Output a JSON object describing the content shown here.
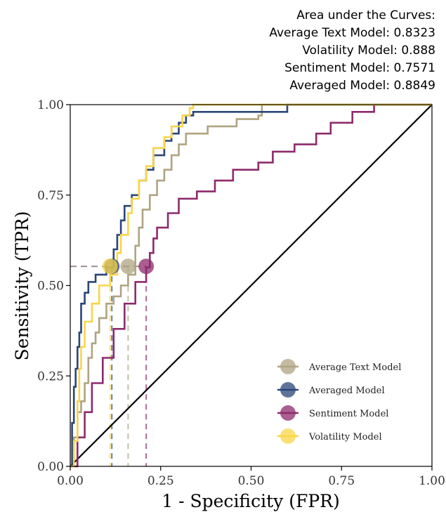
{
  "chart_data": {
    "type": "line",
    "title": "",
    "xlabel": "1 - Specificity (FPR)",
    "ylabel": "Sensitivity (TPR)",
    "xlim": [
      0,
      1
    ],
    "ylim": [
      0,
      1
    ],
    "xticks": [
      "0.00",
      "0.25",
      "0.50",
      "0.75",
      "1.00"
    ],
    "yticks": [
      "0.00",
      "0.25",
      "0.50",
      "0.75",
      "1.00"
    ],
    "grid": false,
    "legend_position": "bottom-right",
    "auc_box": {
      "lines": [
        "Area under the Curves:",
        "Average Text Model: 0.8323",
        "Volatility Model: 0.888",
        "Sentiment Model: 0.7571",
        "Averaged Model: 0.8849"
      ]
    },
    "operating_points": {
      "tpr": 0.553,
      "reference_line_color": "#9e8a90"
    },
    "diagonal": {
      "x": [
        0,
        1
      ],
      "y": [
        0,
        1
      ],
      "color": "#000000"
    },
    "series": [
      {
        "name": "Average Text Model",
        "color": "#aea481",
        "marker": {
          "x": 0.16,
          "y": 0.553
        },
        "x": [
          0,
          0.01,
          0.01,
          0.02,
          0.02,
          0.03,
          0.03,
          0.04,
          0.04,
          0.05,
          0.05,
          0.06,
          0.06,
          0.07,
          0.07,
          0.08,
          0.08,
          0.1,
          0.1,
          0.12,
          0.12,
          0.14,
          0.14,
          0.16,
          0.16,
          0.18,
          0.18,
          0.19,
          0.19,
          0.2,
          0.2,
          0.22,
          0.22,
          0.24,
          0.24,
          0.26,
          0.26,
          0.28,
          0.28,
          0.3,
          0.3,
          0.32,
          0.32,
          0.38,
          0.38,
          0.46,
          0.46,
          0.52,
          0.52,
          0.53,
          0.53,
          1.0
        ],
        "y": [
          0,
          0,
          0.08,
          0.08,
          0.15,
          0.15,
          0.18,
          0.18,
          0.23,
          0.23,
          0.3,
          0.3,
          0.34,
          0.34,
          0.37,
          0.37,
          0.41,
          0.41,
          0.45,
          0.45,
          0.47,
          0.47,
          0.5,
          0.5,
          0.53,
          0.53,
          0.61,
          0.61,
          0.66,
          0.66,
          0.71,
          0.71,
          0.75,
          0.75,
          0.79,
          0.79,
          0.82,
          0.82,
          0.86,
          0.86,
          0.89,
          0.89,
          0.92,
          0.92,
          0.94,
          0.94,
          0.96,
          0.96,
          0.97,
          0.97,
          1.0,
          1.0
        ]
      },
      {
        "name": "Averaged Model",
        "color": "#2b4677",
        "marker": {
          "x": 0.115,
          "y": 0.553
        },
        "x": [
          0,
          0.005,
          0.005,
          0.01,
          0.01,
          0.015,
          0.015,
          0.02,
          0.02,
          0.025,
          0.025,
          0.03,
          0.03,
          0.04,
          0.04,
          0.05,
          0.05,
          0.07,
          0.07,
          0.1,
          0.1,
          0.12,
          0.12,
          0.13,
          0.13,
          0.14,
          0.14,
          0.15,
          0.15,
          0.17,
          0.17,
          0.19,
          0.19,
          0.21,
          0.21,
          0.23,
          0.23,
          0.26,
          0.26,
          0.28,
          0.28,
          0.3,
          0.3,
          0.32,
          0.32,
          0.34,
          0.34,
          0.6,
          0.6,
          1.0
        ],
        "y": [
          0,
          0,
          0.12,
          0.12,
          0.22,
          0.22,
          0.27,
          0.27,
          0.33,
          0.33,
          0.37,
          0.37,
          0.45,
          0.45,
          0.48,
          0.48,
          0.51,
          0.51,
          0.53,
          0.53,
          0.55,
          0.55,
          0.6,
          0.6,
          0.64,
          0.64,
          0.68,
          0.68,
          0.72,
          0.72,
          0.75,
          0.75,
          0.79,
          0.79,
          0.82,
          0.82,
          0.86,
          0.86,
          0.9,
          0.9,
          0.92,
          0.92,
          0.95,
          0.95,
          0.97,
          0.97,
          0.98,
          0.98,
          1.0,
          1.0
        ]
      },
      {
        "name": "Sentiment Model",
        "color": "#8e2a6b",
        "marker": {
          "x": 0.21,
          "y": 0.553
        },
        "x": [
          0,
          0.02,
          0.02,
          0.04,
          0.04,
          0.06,
          0.06,
          0.09,
          0.09,
          0.12,
          0.12,
          0.15,
          0.15,
          0.18,
          0.18,
          0.21,
          0.21,
          0.22,
          0.22,
          0.23,
          0.23,
          0.24,
          0.24,
          0.27,
          0.27,
          0.3,
          0.3,
          0.35,
          0.35,
          0.4,
          0.4,
          0.45,
          0.45,
          0.52,
          0.52,
          0.56,
          0.56,
          0.62,
          0.62,
          0.68,
          0.68,
          0.72,
          0.72,
          0.78,
          0.78,
          0.84,
          0.84,
          1.0
        ],
        "y": [
          0,
          0,
          0.08,
          0.08,
          0.15,
          0.15,
          0.23,
          0.23,
          0.3,
          0.3,
          0.38,
          0.38,
          0.45,
          0.45,
          0.51,
          0.51,
          0.55,
          0.55,
          0.59,
          0.59,
          0.63,
          0.63,
          0.66,
          0.66,
          0.7,
          0.7,
          0.74,
          0.74,
          0.76,
          0.76,
          0.79,
          0.79,
          0.82,
          0.82,
          0.84,
          0.84,
          0.87,
          0.87,
          0.89,
          0.89,
          0.92,
          0.92,
          0.95,
          0.95,
          0.98,
          0.98,
          1.0,
          1.0
        ]
      },
      {
        "name": "Volatility Model",
        "color": "#f9d548",
        "marker": {
          "x": 0.11,
          "y": 0.553
        },
        "x": [
          0,
          0.01,
          0.01,
          0.02,
          0.02,
          0.025,
          0.025,
          0.03,
          0.03,
          0.04,
          0.04,
          0.06,
          0.06,
          0.08,
          0.08,
          0.11,
          0.11,
          0.13,
          0.13,
          0.14,
          0.14,
          0.16,
          0.16,
          0.17,
          0.17,
          0.19,
          0.19,
          0.21,
          0.21,
          0.23,
          0.23,
          0.26,
          0.26,
          0.28,
          0.28,
          0.31,
          0.31,
          0.33,
          0.33,
          0.34,
          0.34,
          1.0
        ],
        "y": [
          0,
          0,
          0.07,
          0.07,
          0.18,
          0.18,
          0.27,
          0.27,
          0.33,
          0.33,
          0.4,
          0.4,
          0.45,
          0.45,
          0.5,
          0.5,
          0.53,
          0.53,
          0.59,
          0.59,
          0.64,
          0.64,
          0.7,
          0.7,
          0.74,
          0.74,
          0.79,
          0.79,
          0.83,
          0.83,
          0.88,
          0.88,
          0.91,
          0.91,
          0.94,
          0.94,
          0.97,
          0.97,
          0.99,
          0.99,
          1.0,
          1.0
        ]
      }
    ]
  }
}
